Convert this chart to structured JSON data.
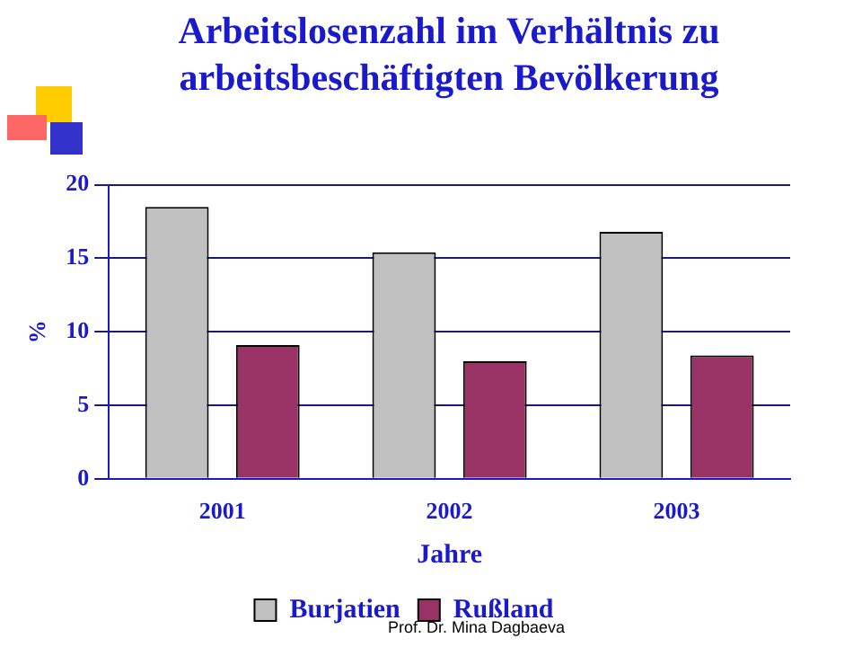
{
  "chart_data": {
    "type": "bar",
    "title": "Arbeitslosenzahl im Verhältnis zu arbeitsbeschäftigten Bevölkerung",
    "xlabel": "Jahre",
    "ylabel": "%",
    "categories": [
      "2001",
      "2002",
      "2003"
    ],
    "series": [
      {
        "name": "Burjatien",
        "color": "#c0c0c0",
        "values": [
          18.5,
          15.4,
          16.8
        ]
      },
      {
        "name": "Rußland",
        "color": "#993366",
        "values": [
          9.1,
          8.0,
          8.4
        ]
      }
    ],
    "ylim": [
      0,
      20
    ],
    "yticks": [
      0,
      5,
      10,
      15,
      20
    ],
    "grid": "y",
    "legend": "bottom",
    "annotations": [
      "Prof. Dr. Mina Dagbaeva"
    ]
  }
}
